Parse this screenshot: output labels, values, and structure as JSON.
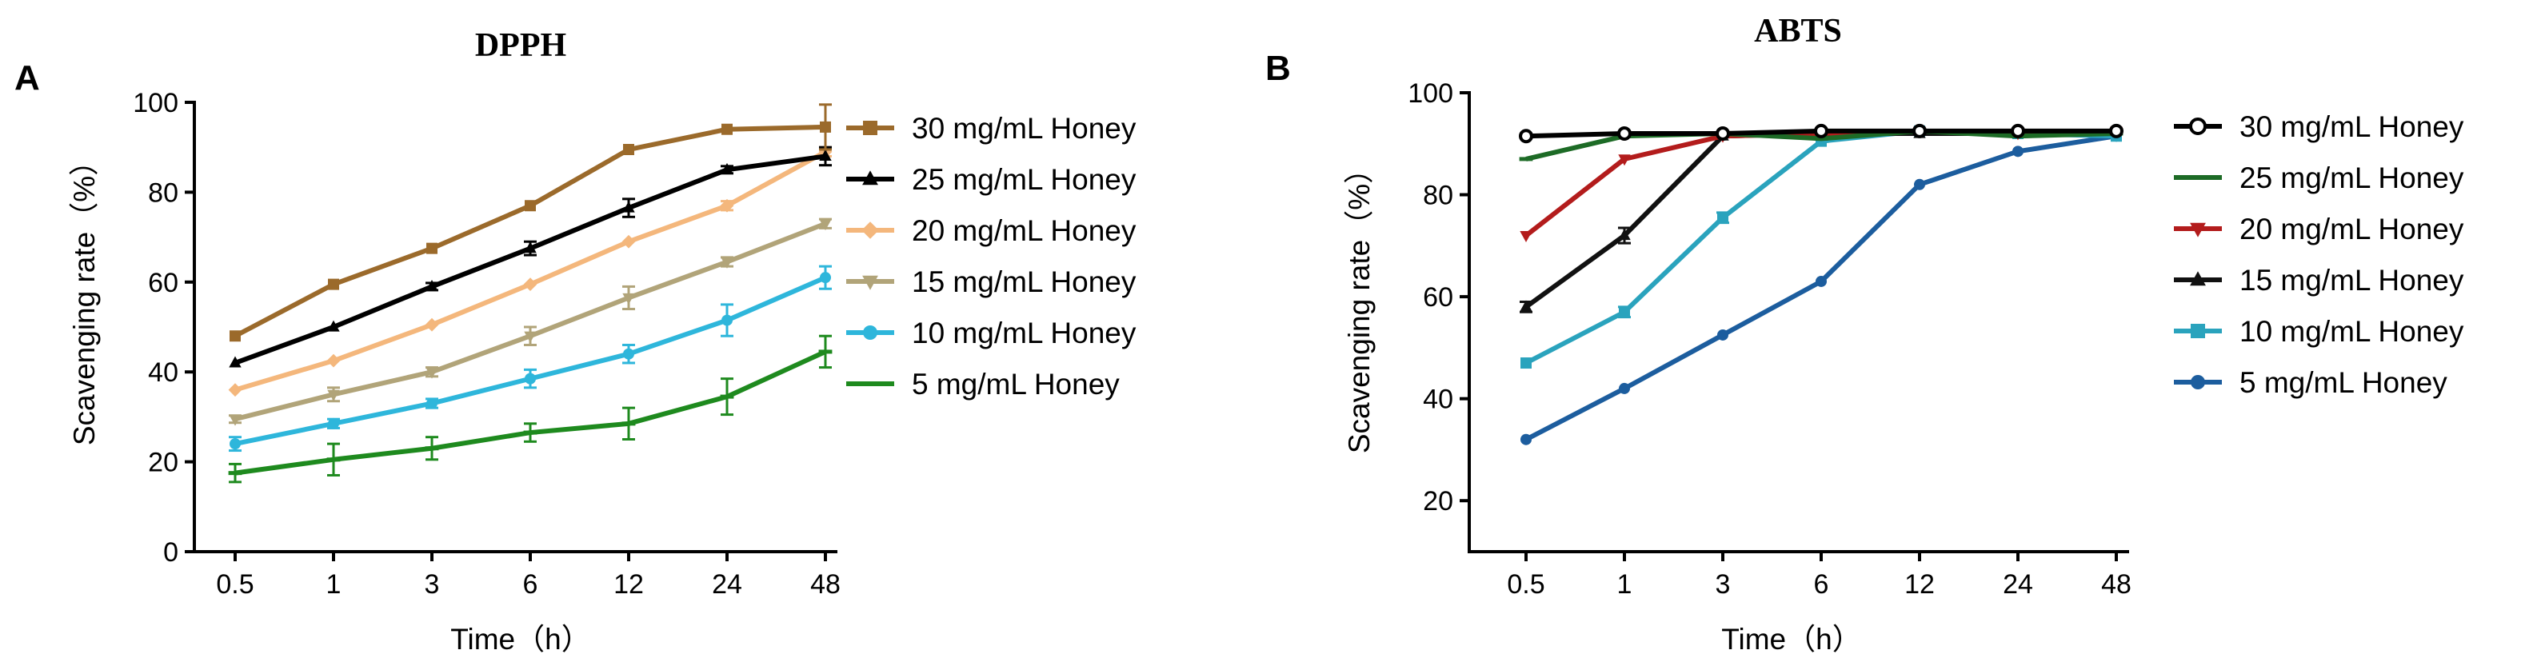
{
  "chart_data": [
    {
      "panel_label": "A",
      "type": "line",
      "title": "DPPH",
      "xlabel": "Time（h）",
      "ylabel": "Scavenging rate（%）",
      "categories": [
        "0.5",
        "1",
        "3",
        "6",
        "12",
        "24",
        "48"
      ],
      "ylim": [
        0,
        100
      ],
      "yticks": [
        "0",
        "20",
        "40",
        "60",
        "80",
        "100"
      ],
      "legend_position": "right",
      "series": [
        {
          "name": "30 mg/mL Honey",
          "color": "#9b6a2b",
          "marker": "square",
          "values": [
            48,
            59.5,
            67.5,
            77,
            89.5,
            94,
            94.5
          ],
          "errors": [
            0.5,
            0.6,
            0.5,
            0.5,
            0.5,
            0.5,
            5
          ]
        },
        {
          "name": "25 mg/mL Honey",
          "color": "#000000",
          "marker": "triangle-up",
          "values": [
            42,
            50,
            59,
            67.5,
            76.5,
            85,
            88
          ],
          "errors": [
            0.5,
            0.5,
            0.8,
            1.5,
            2,
            0.8,
            2
          ]
        },
        {
          "name": "20 mg/mL Honey",
          "color": "#f4b77c",
          "marker": "diamond",
          "values": [
            36,
            42.5,
            50.5,
            59.5,
            69,
            77,
            89
          ],
          "errors": [
            0.5,
            0.5,
            0.5,
            0.5,
            0.5,
            1,
            1
          ]
        },
        {
          "name": "15 mg/mL Honey",
          "color": "#b1a479",
          "marker": "triangle-down",
          "values": [
            29.5,
            35,
            40,
            48,
            56.5,
            64.5,
            73
          ],
          "errors": [
            0.8,
            1.5,
            1,
            2,
            2.5,
            1,
            1
          ]
        },
        {
          "name": "10 mg/mL Honey",
          "color": "#2eb6db",
          "marker": "circle",
          "values": [
            24,
            28.5,
            33,
            38.5,
            44,
            51.5,
            61
          ],
          "errors": [
            1.5,
            1,
            1,
            2,
            2,
            3.5,
            2.5
          ]
        },
        {
          "name": "5 mg/mL Honey",
          "color": "#1e8a1e",
          "marker": "dash",
          "values": [
            17.5,
            20.5,
            23,
            26.5,
            28.5,
            34.5,
            44.5
          ],
          "errors": [
            2,
            3.5,
            2.5,
            2,
            3.5,
            4,
            3.5
          ]
        }
      ]
    },
    {
      "panel_label": "B",
      "type": "line",
      "title": "ABTS",
      "xlabel": "Time（h）",
      "ylabel": "Scavenging rate（%）",
      "categories": [
        "0.5",
        "1",
        "3",
        "6",
        "12",
        "24",
        "48"
      ],
      "ylim": [
        10,
        100
      ],
      "yticks": [
        "20",
        "40",
        "60",
        "80",
        "100"
      ],
      "legend_position": "right",
      "series": [
        {
          "name": "30 mg/mL Honey",
          "color": "#000000",
          "marker": "circle-open",
          "values": [
            91.5,
            92,
            92,
            92.5,
            92.5,
            92.5,
            92.5
          ],
          "errors": [
            0.5,
            0.4,
            0.4,
            0.4,
            0.4,
            0.4,
            0.4
          ]
        },
        {
          "name": "25 mg/mL Honey",
          "color": "#1d6b26",
          "marker": "dash",
          "values": [
            87,
            91.5,
            92,
            91,
            92.5,
            91.5,
            92
          ],
          "errors": [
            0.5,
            0.5,
            0.5,
            0.5,
            0.5,
            0.5,
            0.5
          ]
        },
        {
          "name": "20 mg/mL Honey",
          "color": "#b31c1c",
          "marker": "triangle-down",
          "values": [
            72,
            87,
            91.5,
            92,
            92.5,
            92,
            92.5
          ],
          "errors": [
            0.5,
            0.5,
            0.5,
            0.5,
            0.5,
            0.5,
            0.5
          ]
        },
        {
          "name": "15 mg/mL Honey",
          "color": "#111111",
          "marker": "triangle-up",
          "values": [
            58,
            72,
            91.5,
            92,
            92,
            92,
            92.5
          ],
          "errors": [
            1,
            1.5,
            0.5,
            0.5,
            0.5,
            0.5,
            0.5
          ]
        },
        {
          "name": "10 mg/mL Honey",
          "color": "#2aa3bd",
          "marker": "square",
          "values": [
            47,
            57,
            75.5,
            90.5,
            92.5,
            92,
            91.5
          ],
          "errors": [
            0.5,
            1,
            1,
            0.5,
            0.5,
            0.5,
            0.5
          ]
        },
        {
          "name": "5 mg/mL Honey",
          "color": "#1c5d9e",
          "marker": "circle",
          "values": [
            32,
            42,
            52.5,
            63,
            82,
            88.5,
            91.5
          ],
          "errors": [
            0.5,
            0.5,
            0.5,
            0.5,
            0.5,
            0.5,
            0.5
          ]
        }
      ]
    }
  ]
}
